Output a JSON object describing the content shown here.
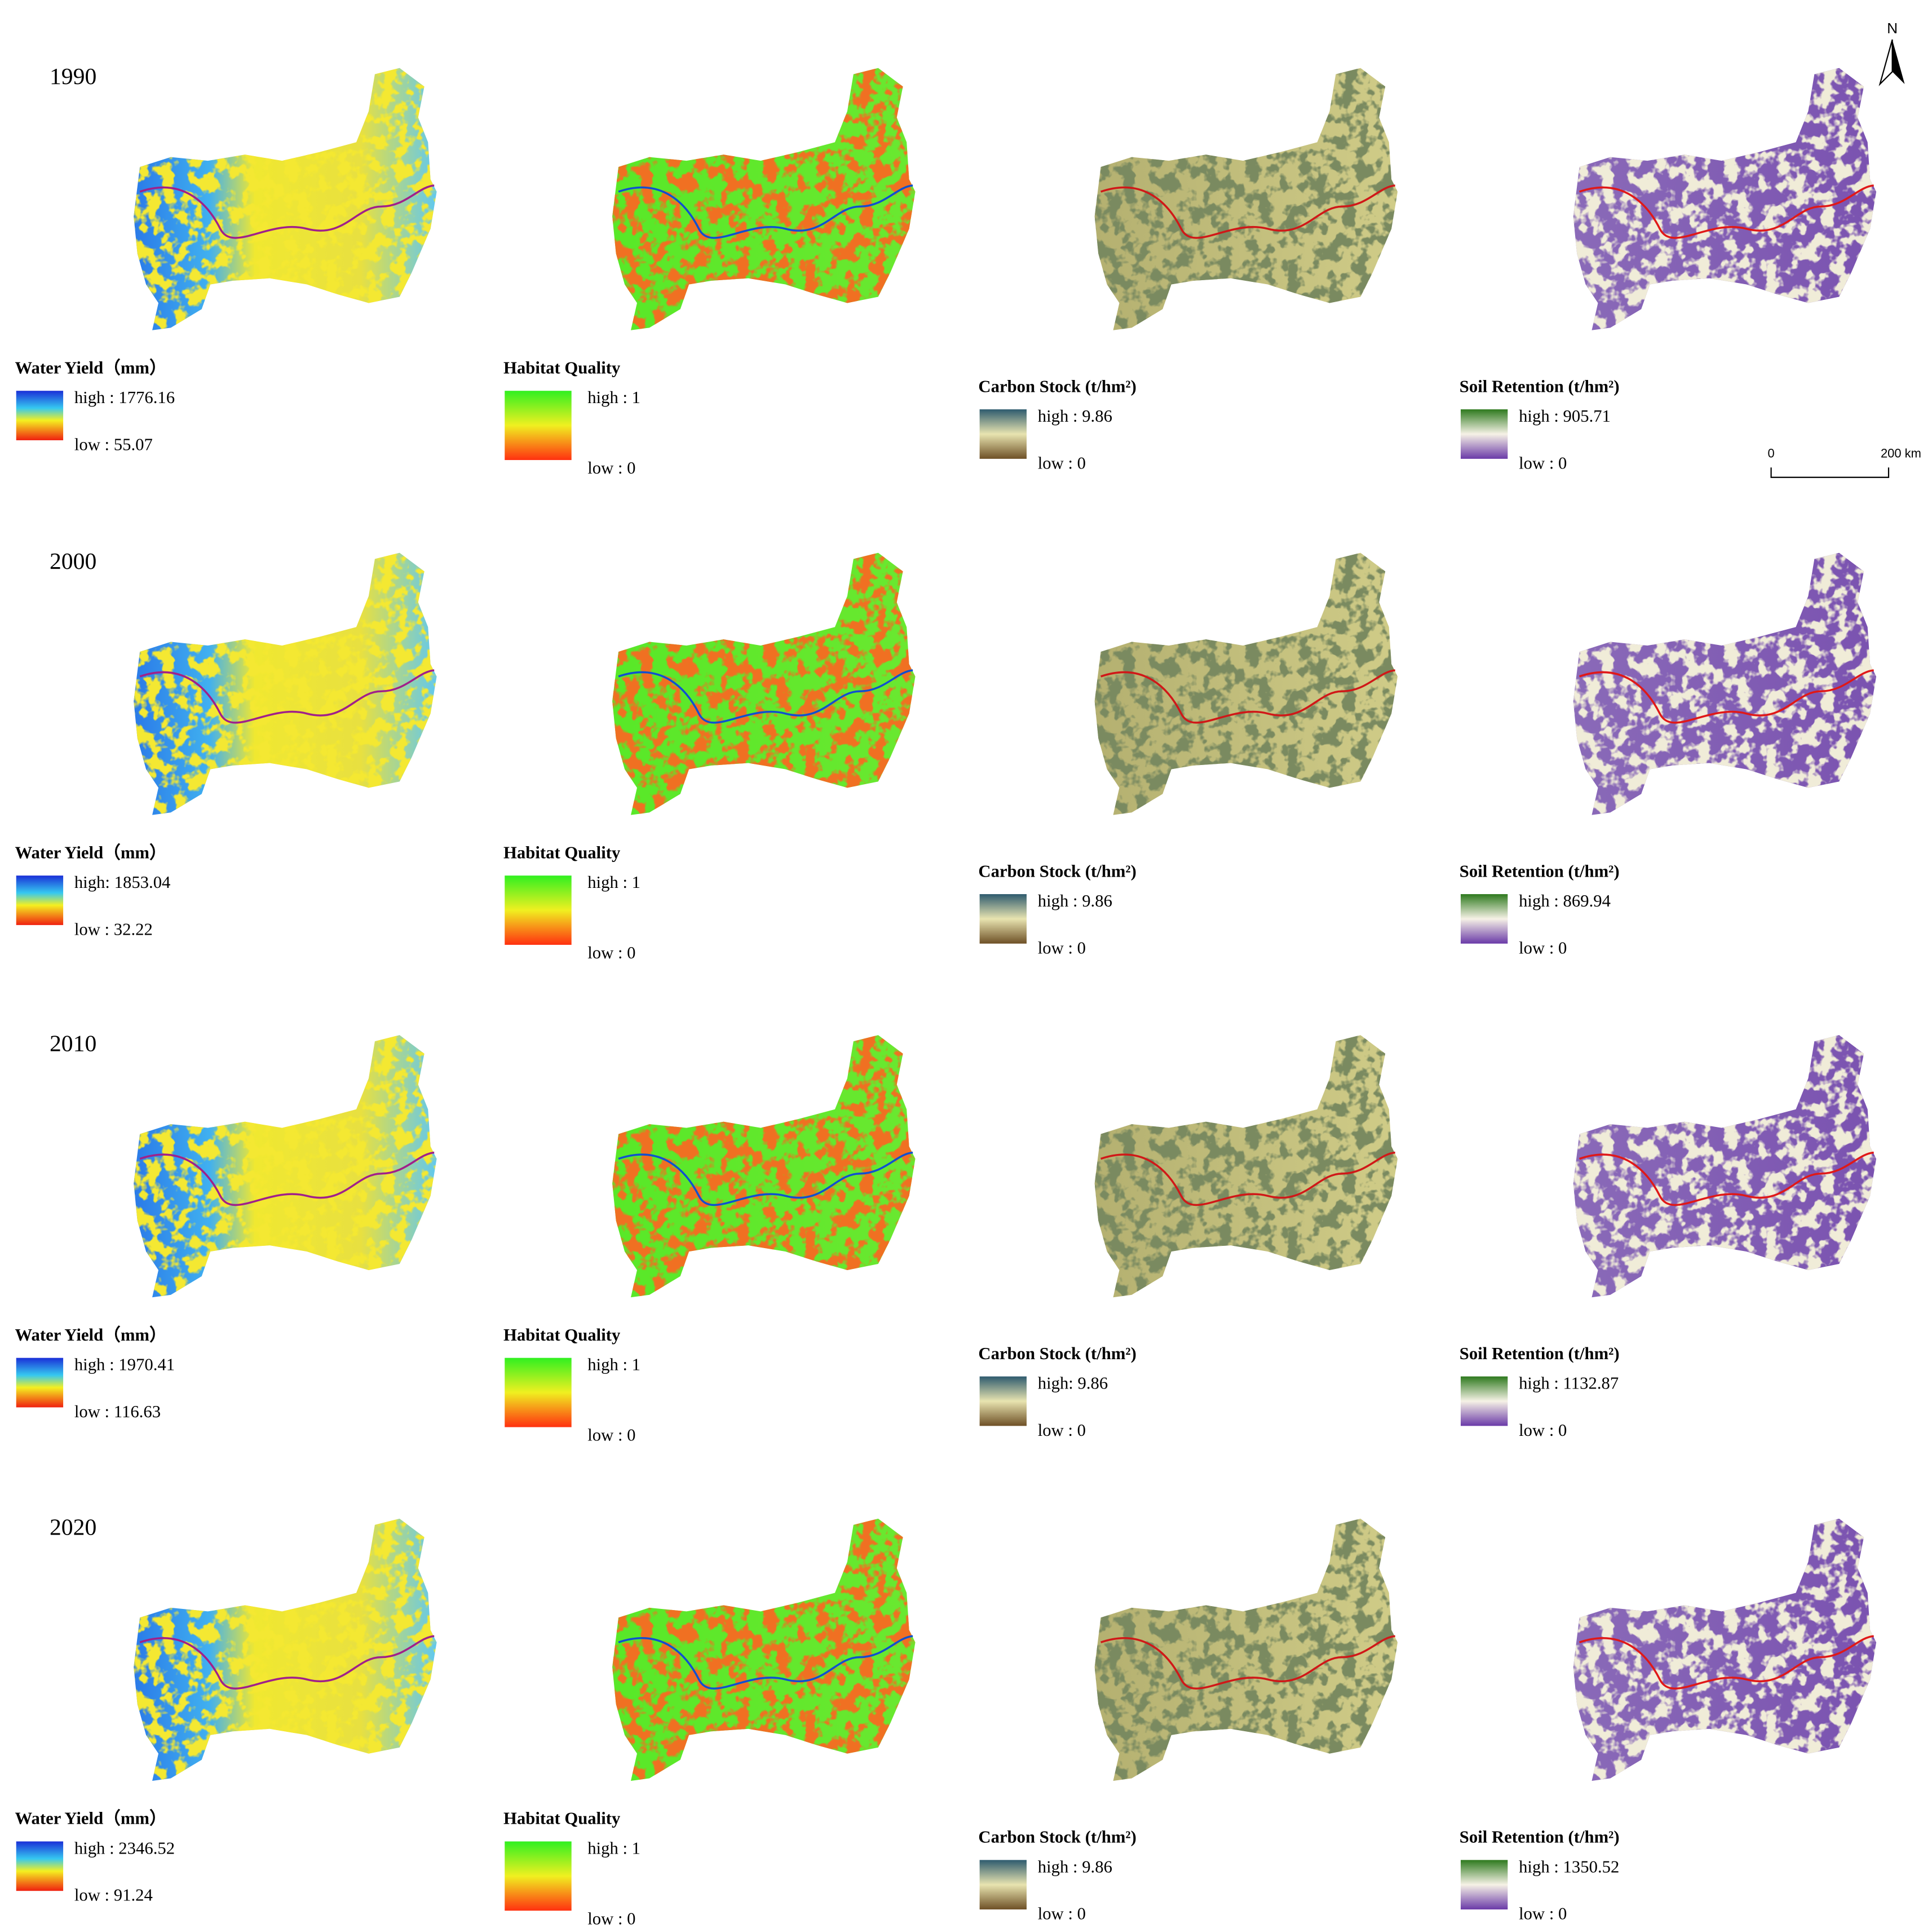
{
  "north": "N",
  "scale_bar": {
    "start": "0",
    "end": "200 km"
  },
  "rows": [
    {
      "year": "1990",
      "panels": [
        {
          "title": "Water Yield（mm）",
          "high": "high : 1776.16",
          "low": "low : 55.07"
        },
        {
          "title": "Habitat Quality",
          "high": "high : 1",
          "low": "low : 0"
        },
        {
          "title": "Carbon Stock (t/hm²)",
          "high": "high : 9.86",
          "low": "low : 0"
        },
        {
          "title": "Soil Retention (t/hm²)",
          "high": "high : 905.71",
          "low": "low : 0"
        }
      ]
    },
    {
      "year": "2000",
      "panels": [
        {
          "title": "Water Yield（mm）",
          "high": "high: 1853.04",
          "low": "low : 32.22"
        },
        {
          "title": "Habitat Quality",
          "high": "high : 1",
          "low": "low : 0"
        },
        {
          "title": "Carbon Stock (t/hm²)",
          "high": "high : 9.86",
          "low": "low : 0"
        },
        {
          "title": "Soil Retention (t/hm²)",
          "high": "high : 869.94",
          "low": "low : 0"
        }
      ]
    },
    {
      "year": "2010",
      "panels": [
        {
          "title": "Water Yield（mm）",
          "high": "high : 1970.41",
          "low": "low : 116.63"
        },
        {
          "title": "Habitat Quality",
          "high": "high : 1",
          "low": "low : 0"
        },
        {
          "title": "Carbon Stock (t/hm²)",
          "high": "high: 9.86",
          "low": "low : 0"
        },
        {
          "title": "Soil Retention (t/hm²)",
          "high": "high : 1132.87",
          "low": "low : 0"
        }
      ]
    },
    {
      "year": "2020",
      "panels": [
        {
          "title": "Water Yield（mm）",
          "high": "high : 2346.52",
          "low": "low : 91.24"
        },
        {
          "title": "Habitat Quality",
          "high": "high : 1",
          "low": "low : 0"
        },
        {
          "title": "Carbon Stock (t/hm²)",
          "high": "high : 9.86",
          "low": "low : 0"
        },
        {
          "title": "Soil Retention (t/hm²)",
          "high": "high : 1350.52",
          "low": "low : 0"
        }
      ]
    }
  ]
}
